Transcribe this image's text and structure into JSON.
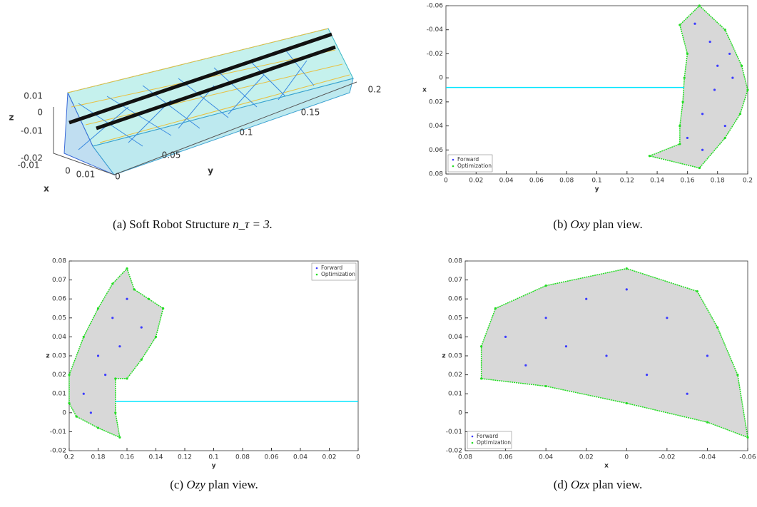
{
  "chart_data": [
    {
      "type": "wireframe3d",
      "caption": {
        "label": "(a)",
        "text": "Soft Robot Structure",
        "math": "n_τ = 3."
      },
      "xlabel": "x",
      "ylabel": "y",
      "zlabel": "z",
      "xticks": [
        -0.01,
        0,
        0.01
      ],
      "yticks": [
        0,
        0.05,
        0.1,
        0.15,
        0.2
      ],
      "zticks": [
        -0.02,
        -0.01,
        0,
        0.01
      ]
    },
    {
      "type": "scatter",
      "caption": {
        "label": "(b)",
        "math": "Oxy",
        "text": "plan view."
      },
      "xlabel": "y",
      "ylabel": "x",
      "xlim": [
        0,
        0.2
      ],
      "ylim": [
        0.08,
        -0.06
      ],
      "xticks": [
        0,
        0.02,
        0.04,
        0.06,
        0.08,
        0.1,
        0.12,
        0.14,
        0.16,
        0.18,
        0.2
      ],
      "yticks": [
        0.08,
        0.06,
        0.04,
        0.02,
        0,
        -0.02,
        -0.04,
        -0.06
      ],
      "legend": "lower left",
      "line": {
        "color": "#00e5ff",
        "x": [
          0,
          0.158
        ],
        "y": [
          0.008,
          0.008
        ]
      },
      "series": [
        {
          "name": "Forward",
          "color": "#3b3bff",
          "x": [
            0.165,
            0.175,
            0.18,
            0.178,
            0.17,
            0.16,
            0.17,
            0.185,
            0.19,
            0.188
          ],
          "y": [
            -0.045,
            -0.03,
            -0.01,
            0.01,
            0.03,
            0.05,
            0.06,
            0.04,
            0.0,
            -0.02
          ]
        },
        {
          "name": "Optimization",
          "color": "#22dd22",
          "x": [
            0.168,
            0.185,
            0.196,
            0.2,
            0.195,
            0.185,
            0.168,
            0.135,
            0.155,
            0.155,
            0.157,
            0.158,
            0.16,
            0.155
          ],
          "y": [
            -0.06,
            -0.04,
            -0.01,
            0.01,
            0.03,
            0.05,
            0.075,
            0.065,
            0.055,
            0.04,
            0.02,
            0.0,
            -0.02,
            -0.044
          ]
        }
      ]
    },
    {
      "type": "scatter",
      "caption": {
        "label": "(c)",
        "math": "Ozy",
        "text": "plan view."
      },
      "xlabel": "y",
      "ylabel": "z",
      "xlim": [
        0.2,
        0
      ],
      "ylim": [
        -0.02,
        0.08
      ],
      "xticks": [
        0.2,
        0.18,
        0.16,
        0.14,
        0.12,
        0.1,
        0.08,
        0.06,
        0.04,
        0.02,
        0
      ],
      "yticks": [
        -0.02,
        -0.01,
        0,
        0.01,
        0.02,
        0.03,
        0.04,
        0.05,
        0.06,
        0.07,
        0.08
      ],
      "legend": "upper right",
      "line": {
        "color": "#00e5ff",
        "x": [
          0.168,
          0
        ],
        "y": [
          0.006,
          0.006
        ]
      },
      "series": [
        {
          "name": "Forward",
          "color": "#3b3bff",
          "x": [
            0.19,
            0.18,
            0.17,
            0.16,
            0.15,
            0.185,
            0.175,
            0.165
          ],
          "y": [
            0.01,
            0.03,
            0.05,
            0.06,
            0.045,
            0.0,
            0.02,
            0.035
          ]
        },
        {
          "name": "Optimization",
          "color": "#22dd22",
          "x": [
            0.2,
            0.2,
            0.19,
            0.18,
            0.17,
            0.16,
            0.155,
            0.145,
            0.135,
            0.14,
            0.15,
            0.16,
            0.168,
            0.168,
            0.165,
            0.18,
            0.195
          ],
          "y": [
            0.005,
            0.02,
            0.04,
            0.055,
            0.068,
            0.076,
            0.065,
            0.06,
            0.055,
            0.04,
            0.028,
            0.018,
            0.018,
            0.0,
            -0.013,
            -0.008,
            -0.002
          ]
        }
      ]
    },
    {
      "type": "scatter",
      "caption": {
        "label": "(d)",
        "math": "Ozx",
        "text": "plan view."
      },
      "xlabel": "x",
      "ylabel": "z",
      "xlim": [
        0.08,
        -0.06
      ],
      "ylim": [
        -0.02,
        0.08
      ],
      "xticks": [
        0.08,
        0.06,
        0.04,
        0.02,
        0,
        -0.02,
        -0.04,
        -0.06
      ],
      "yticks": [
        -0.02,
        -0.01,
        0,
        0.01,
        0.02,
        0.03,
        0.04,
        0.05,
        0.06,
        0.07,
        0.08
      ],
      "legend": "lower left",
      "series": [
        {
          "name": "Forward",
          "color": "#3b3bff",
          "x": [
            0.06,
            0.04,
            0.02,
            0,
            -0.02,
            -0.04,
            0.05,
            0.03,
            0.01,
            -0.01,
            -0.03
          ],
          "y": [
            0.04,
            0.05,
            0.06,
            0.065,
            0.05,
            0.03,
            0.025,
            0.035,
            0.03,
            0.02,
            0.01
          ]
        },
        {
          "name": "Optimization",
          "color": "#22dd22",
          "x": [
            0.072,
            0.072,
            0.065,
            0.04,
            0.0,
            -0.035,
            -0.045,
            -0.055,
            -0.06,
            -0.04,
            0.0,
            0.04
          ],
          "y": [
            0.018,
            0.035,
            0.055,
            0.067,
            0.076,
            0.064,
            0.045,
            0.02,
            -0.013,
            -0.005,
            0.005,
            0.014
          ]
        }
      ]
    }
  ]
}
